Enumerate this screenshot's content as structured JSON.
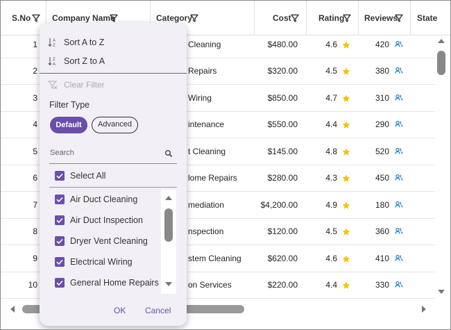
{
  "grid": {
    "columns": [
      "S.No",
      "Company Name",
      "Category",
      "Cost",
      "Rating",
      "Reviews",
      "State"
    ],
    "rows": [
      {
        "sno": "1",
        "category": "Cleaning",
        "cost": "$480.00",
        "rating": "4.6",
        "reviews": "420"
      },
      {
        "sno": "2",
        "category": "Repairs",
        "cost": "$320.00",
        "rating": "4.5",
        "reviews": "380"
      },
      {
        "sno": "3",
        "category": "Wiring",
        "cost": "$850.00",
        "rating": "4.7",
        "reviews": "310"
      },
      {
        "sno": "4",
        "category": "intenance",
        "cost": "$550.00",
        "rating": "4.4",
        "reviews": "290"
      },
      {
        "sno": "5",
        "category": "t Cleaning",
        "cost": "$145.00",
        "rating": "4.8",
        "reviews": "520"
      },
      {
        "sno": "6",
        "category": "lome Repairs",
        "cost": "$280.00",
        "rating": "4.3",
        "reviews": "450"
      },
      {
        "sno": "7",
        "category": "mediation",
        "cost": "$4,200.00",
        "rating": "4.9",
        "reviews": "180"
      },
      {
        "sno": "8",
        "category": "nspection",
        "cost": "$120.00",
        "rating": "4.5",
        "reviews": "360"
      },
      {
        "sno": "9",
        "category": "stem Cleaning",
        "cost": "$620.00",
        "rating": "4.6",
        "reviews": "410"
      },
      {
        "sno": "10",
        "category": "on Services",
        "cost": "$220.00",
        "rating": "4.4",
        "reviews": "330"
      }
    ]
  },
  "filter_menu": {
    "sort_asc": "Sort A to Z",
    "sort_desc": "Sort Z to A",
    "clear_filter": "Clear Filter",
    "filter_type_label": "Filter Type",
    "filter_types": [
      "Default",
      "Advanced"
    ],
    "search_placeholder": "Search",
    "select_all": "Select All",
    "options": [
      "Air Duct Cleaning",
      "Air Duct Inspection",
      "Dryer Vent Cleaning",
      "Electrical Wiring",
      "General Home Repairs"
    ],
    "ok": "OK",
    "cancel": "Cancel"
  }
}
